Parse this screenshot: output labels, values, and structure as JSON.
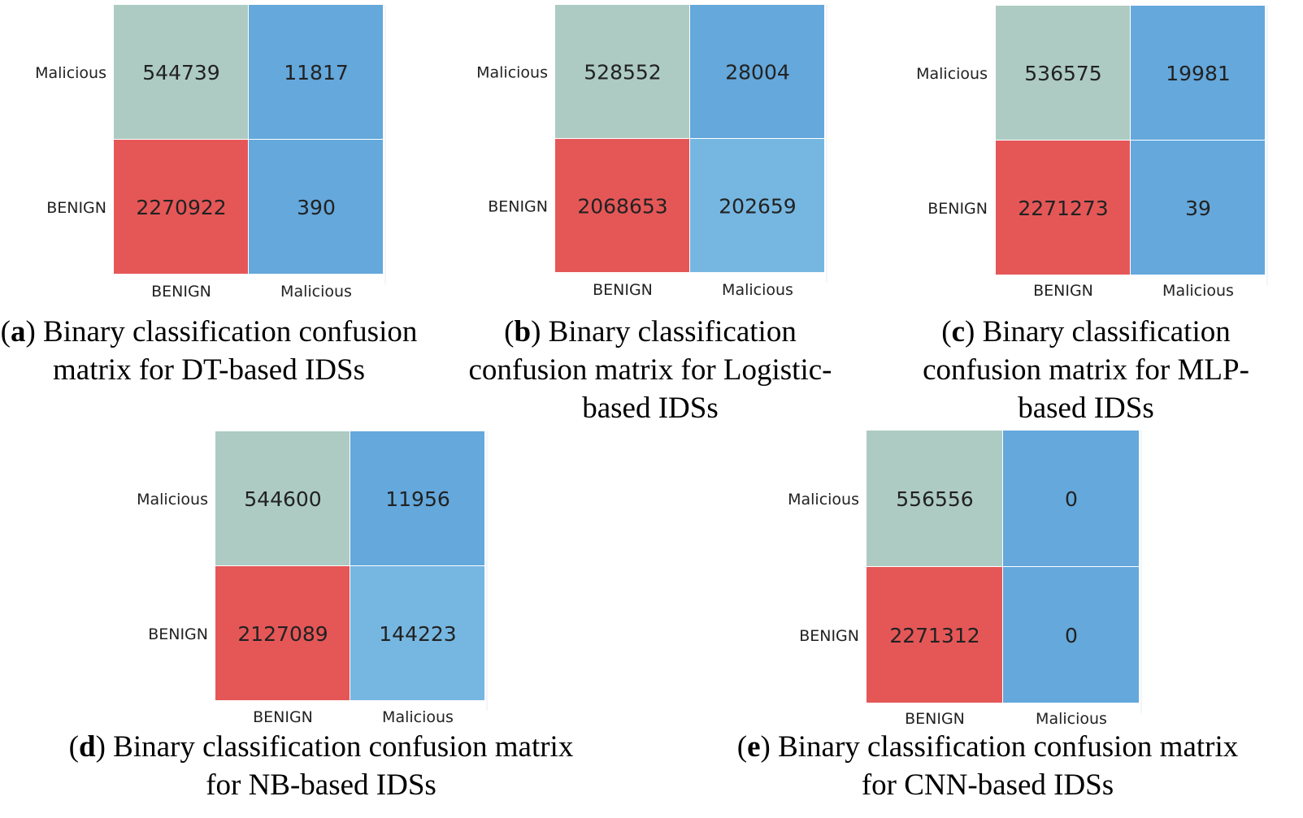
{
  "colors": {
    "tn": "#adcbc3",
    "fn": "#e55757",
    "blue": "#64a8dc",
    "light_blue": "#76b7e1",
    "text": "#222222"
  },
  "chart_data": [
    {
      "id": "a",
      "type": "heatmap",
      "row_labels": [
        "Malicious",
        "BENIGN"
      ],
      "col_labels": [
        "BENIGN",
        "Malicious"
      ],
      "values": [
        [
          544739,
          11817
        ],
        [
          2270922,
          390
        ]
      ],
      "caption": {
        "letter": "a",
        "text": "Binary classification confusion matrix for DT-based IDSs"
      }
    },
    {
      "id": "b",
      "type": "heatmap",
      "row_labels": [
        "Malicious",
        "BENIGN"
      ],
      "col_labels": [
        "BENIGN",
        "Malicious"
      ],
      "values": [
        [
          528552,
          28004
        ],
        [
          2068653,
          202659
        ]
      ],
      "caption": {
        "letter": "b",
        "text": "Binary classification confusion matrix for Logistic-based IDSs"
      }
    },
    {
      "id": "c",
      "type": "heatmap",
      "row_labels": [
        "Malicious",
        "BENIGN"
      ],
      "col_labels": [
        "BENIGN",
        "Malicious"
      ],
      "values": [
        [
          536575,
          19981
        ],
        [
          2271273,
          39
        ]
      ],
      "caption": {
        "letter": "c",
        "text": "Binary classification confusion matrix for MLP-based IDSs"
      }
    },
    {
      "id": "d",
      "type": "heatmap",
      "row_labels": [
        "Malicious",
        "BENIGN"
      ],
      "col_labels": [
        "BENIGN",
        "Malicious"
      ],
      "values": [
        [
          544600,
          11956
        ],
        [
          2127089,
          144223
        ]
      ],
      "caption": {
        "letter": "d",
        "text": "Binary classification confusion matrix for NB-based IDSs"
      }
    },
    {
      "id": "e",
      "type": "heatmap",
      "row_labels": [
        "Malicious",
        "BENIGN"
      ],
      "col_labels": [
        "BENIGN",
        "Malicious"
      ],
      "values": [
        [
          556556,
          0
        ],
        [
          2271312,
          0
        ]
      ],
      "caption": {
        "letter": "e",
        "text": "Binary classification confusion matrix for CNN-based IDSs"
      }
    }
  ]
}
